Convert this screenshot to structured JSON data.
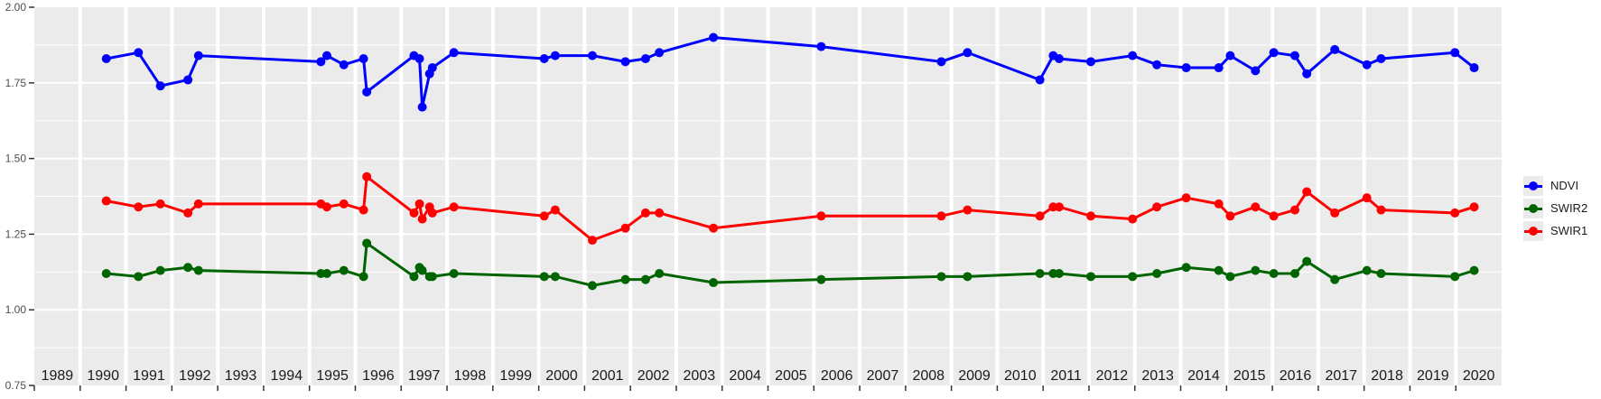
{
  "chart_data": {
    "type": "line",
    "title": "",
    "x": [
      1990.57,
      1991.27,
      1991.75,
      1992.35,
      1992.58,
      1995.25,
      1995.38,
      1995.75,
      1996.18,
      1996.25,
      1997.28,
      1997.4,
      1997.46,
      1997.62,
      1997.68,
      1998.15,
      2000.12,
      2000.36,
      2001.17,
      2001.89,
      2002.33,
      2002.63,
      2003.81,
      2006.16,
      2008.78,
      2009.35,
      2010.93,
      2011.22,
      2011.35,
      2012.04,
      2012.95,
      2013.48,
      2014.12,
      2014.83,
      2015.08,
      2015.63,
      2016.03,
      2016.49,
      2016.75,
      2017.36,
      2018.06,
      2018.37,
      2019.98,
      2020.4
    ],
    "series": [
      {
        "name": "NDVI",
        "color": "#0000FF",
        "values": [
          1.83,
          1.85,
          1.74,
          1.76,
          1.84,
          1.82,
          1.84,
          1.81,
          1.83,
          1.72,
          1.84,
          1.83,
          1.67,
          1.78,
          1.8,
          1.85,
          1.83,
          1.84,
          1.84,
          1.82,
          1.83,
          1.85,
          1.9,
          1.87,
          1.82,
          1.85,
          1.76,
          1.84,
          1.83,
          1.82,
          1.84,
          1.81,
          1.8,
          1.8,
          1.84,
          1.79,
          1.85,
          1.84,
          1.78,
          1.86,
          1.81,
          1.83,
          1.85,
          1.8
        ]
      },
      {
        "name": "SWIR2",
        "color": "#006400",
        "values": [
          1.12,
          1.11,
          1.13,
          1.14,
          1.13,
          1.12,
          1.12,
          1.13,
          1.11,
          1.22,
          1.11,
          1.14,
          1.13,
          1.11,
          1.11,
          1.12,
          1.11,
          1.11,
          1.08,
          1.1,
          1.1,
          1.12,
          1.09,
          1.1,
          1.11,
          1.11,
          1.12,
          1.12,
          1.12,
          1.11,
          1.11,
          1.12,
          1.14,
          1.13,
          1.11,
          1.13,
          1.12,
          1.12,
          1.16,
          1.1,
          1.13,
          1.12,
          1.11,
          1.13
        ]
      },
      {
        "name": "SWIR1",
        "color": "#FF0000",
        "values": [
          1.36,
          1.34,
          1.35,
          1.32,
          1.35,
          1.35,
          1.34,
          1.35,
          1.33,
          1.44,
          1.32,
          1.35,
          1.3,
          1.34,
          1.32,
          1.34,
          1.31,
          1.33,
          1.23,
          1.27,
          1.32,
          1.32,
          1.27,
          1.31,
          1.31,
          1.33,
          1.31,
          1.34,
          1.34,
          1.31,
          1.3,
          1.34,
          1.37,
          1.35,
          1.31,
          1.34,
          1.31,
          1.33,
          1.39,
          1.32,
          1.37,
          1.33,
          1.32,
          1.34
        ]
      }
    ],
    "x_axis": {
      "label": "",
      "range": [
        1989,
        2021
      ],
      "year_labels": [
        "1989",
        "1990",
        "1991",
        "1992",
        "1993",
        "1994",
        "1995",
        "1996",
        "1997",
        "1998",
        "1999",
        "2000",
        "2001",
        "2002",
        "2003",
        "2004",
        "2005",
        "2006",
        "2007",
        "2008",
        "2009",
        "2010",
        "2011",
        "2012",
        "2013",
        "2014",
        "2015",
        "2016",
        "2017",
        "2018",
        "2019",
        "2020"
      ]
    },
    "y_axis": {
      "label": "",
      "range": [
        0.75,
        2.0
      ],
      "ticks": [
        0.75,
        1.0,
        1.25,
        1.5,
        1.75,
        2.0
      ],
      "tick_labels": [
        "0.75",
        "1.00",
        "1.25",
        "1.50",
        "1.75",
        "2.00"
      ]
    },
    "legend": {
      "position": "right",
      "entries": [
        "NDVI",
        "SWIR2",
        "SWIR1"
      ]
    },
    "style": {
      "panel_background": "#EBEBEB",
      "gridline_color": "#FFFFFF",
      "axis_text_color": "#4D4D4D",
      "year_label_color": "#1A1A1A",
      "tick_color": "#333333",
      "legend_key_background": "#EBEBEB"
    },
    "grid": {
      "major": true,
      "minor": true
    }
  }
}
